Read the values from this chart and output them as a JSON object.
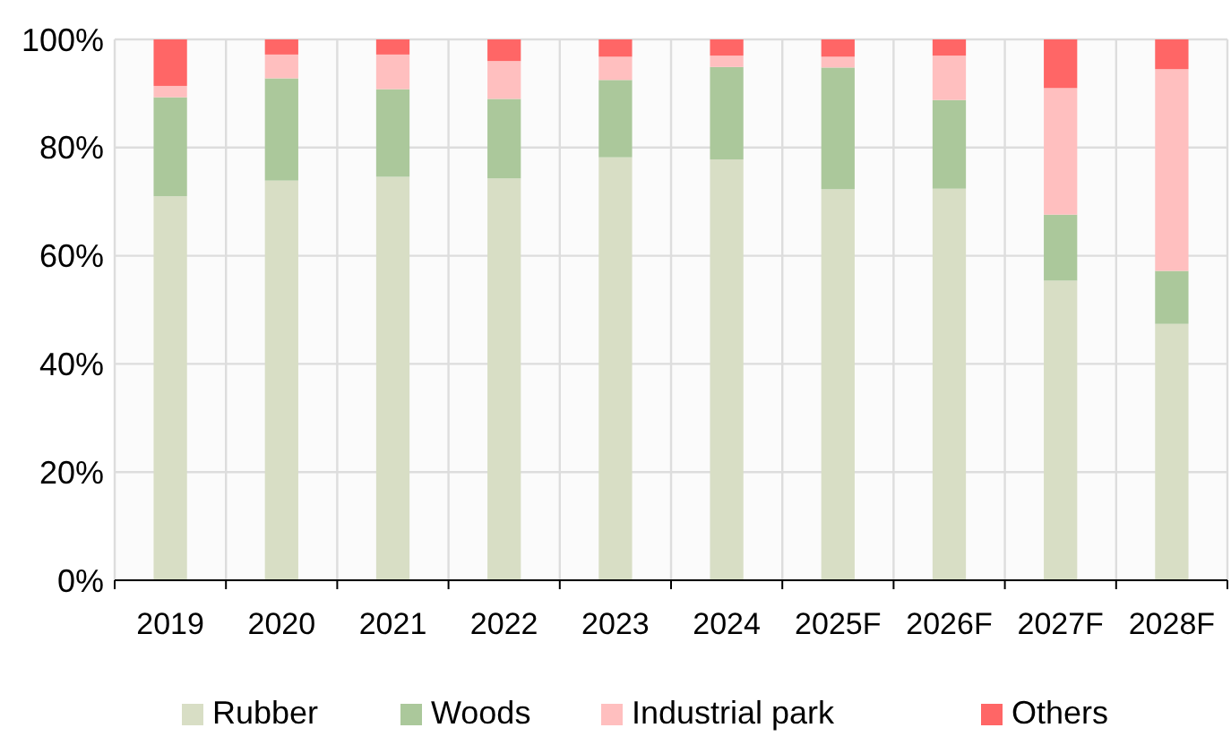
{
  "chart_data": {
    "type": "bar",
    "stacked": true,
    "categories": [
      "2019",
      "2020",
      "2021",
      "2022",
      "2023",
      "2024",
      "2025F",
      "2026F",
      "2027F",
      "2028F"
    ],
    "series": [
      {
        "name": "Rubber",
        "color": "#d8dec5",
        "values": [
          71,
          73.9,
          74.6,
          74.3,
          78.2,
          77.8,
          72.3,
          72.4,
          55.4,
          47.4
        ]
      },
      {
        "name": "Woods",
        "color": "#abc89b",
        "values": [
          18.3,
          18.9,
          16.2,
          14.7,
          14.3,
          17.1,
          22.5,
          16.4,
          12.2,
          9.8
        ]
      },
      {
        "name": "Industrial park",
        "color": "#ffbfbf",
        "values": [
          2.1,
          4.4,
          6.4,
          7,
          4.3,
          2.1,
          2,
          8.2,
          23.4,
          37.3
        ]
      },
      {
        "name": "Others",
        "color": "#ff6666",
        "values": [
          8.6,
          2.8,
          2.8,
          4,
          3.2,
          3,
          3.2,
          3,
          9,
          5.5
        ]
      }
    ],
    "ylim": [
      0,
      100
    ],
    "yticks": [
      {
        "value": 0,
        "label": "0%"
      },
      {
        "value": 20,
        "label": "20%"
      },
      {
        "value": 40,
        "label": "40%"
      },
      {
        "value": 60,
        "label": "60%"
      },
      {
        "value": 80,
        "label": "80%"
      },
      {
        "value": 100,
        "label": "100%"
      }
    ],
    "grid": true,
    "legend": "bottom"
  }
}
